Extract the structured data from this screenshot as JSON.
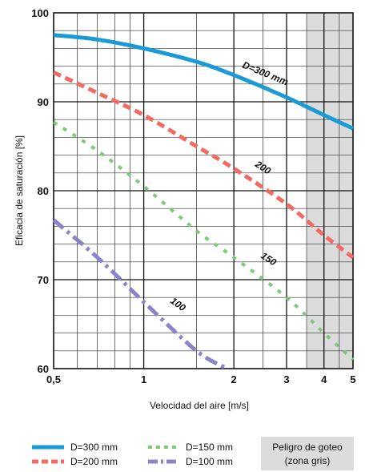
{
  "chart_data": {
    "type": "line",
    "xlabel": "Velocidad del aire [m/s]",
    "ylabel": "Eficacia de saturación  [%]",
    "x_scale": "log",
    "xlim": [
      0.5,
      5
    ],
    "ylim": [
      60,
      100
    ],
    "x_ticks": [
      {
        "value": 0.5,
        "label": "0,5"
      },
      {
        "value": 1,
        "label": "1"
      },
      {
        "value": 2,
        "label": "2"
      },
      {
        "value": 3,
        "label": "3"
      },
      {
        "value": 4,
        "label": "4"
      },
      {
        "value": 5,
        "label": "5"
      }
    ],
    "y_ticks": [
      {
        "value": 60,
        "label": "60"
      },
      {
        "value": 70,
        "label": "70"
      },
      {
        "value": 80,
        "label": "80"
      },
      {
        "value": 90,
        "label": "90"
      },
      {
        "value": 100,
        "label": "100"
      }
    ],
    "grid": true,
    "shaded_region": {
      "x_from": 3.5,
      "x_to": 5,
      "color": "#dcdcdc"
    },
    "series": [
      {
        "name": "D=300 mm",
        "curve_label": "D=300 mm",
        "color": "#1a9ad6",
        "dash": "solid",
        "x": [
          0.5,
          0.7,
          1,
          1.5,
          2,
          3,
          4,
          5
        ],
        "y": [
          97.5,
          97.0,
          96.0,
          94.5,
          93.0,
          90.5,
          88.5,
          87.0
        ]
      },
      {
        "name": "D=200 mm",
        "curve_label": "200",
        "color": "#f26b63",
        "dash": "dash",
        "x": [
          0.5,
          0.7,
          1,
          1.5,
          2,
          3,
          4,
          5
        ],
        "y": [
          93.3,
          91.0,
          88.5,
          85.0,
          82.5,
          78.5,
          75.0,
          72.5
        ]
      },
      {
        "name": "D=150 mm",
        "curve_label": "150",
        "color": "#7fc97b",
        "dash": "dot",
        "x": [
          0.5,
          0.7,
          1,
          1.5,
          2,
          3,
          4,
          5
        ],
        "y": [
          87.7,
          84.5,
          80.5,
          75.5,
          72.5,
          68.0,
          64.0,
          61.0
        ]
      },
      {
        "name": "D=100 mm",
        "curve_label": "100",
        "color": "#8a84c8",
        "dash": "dashdot",
        "x": [
          0.5,
          0.7,
          1,
          1.5,
          1.9
        ],
        "y": [
          76.7,
          72.5,
          67.5,
          62.0,
          60.0
        ]
      }
    ],
    "legend": {
      "placement": "bottom",
      "entries": [
        "D=300 mm",
        "D=200 mm",
        "D=150 mm",
        "D=100 mm"
      ],
      "note": "Peligro de goteo",
      "note_sub": "(zona gris)"
    }
  }
}
